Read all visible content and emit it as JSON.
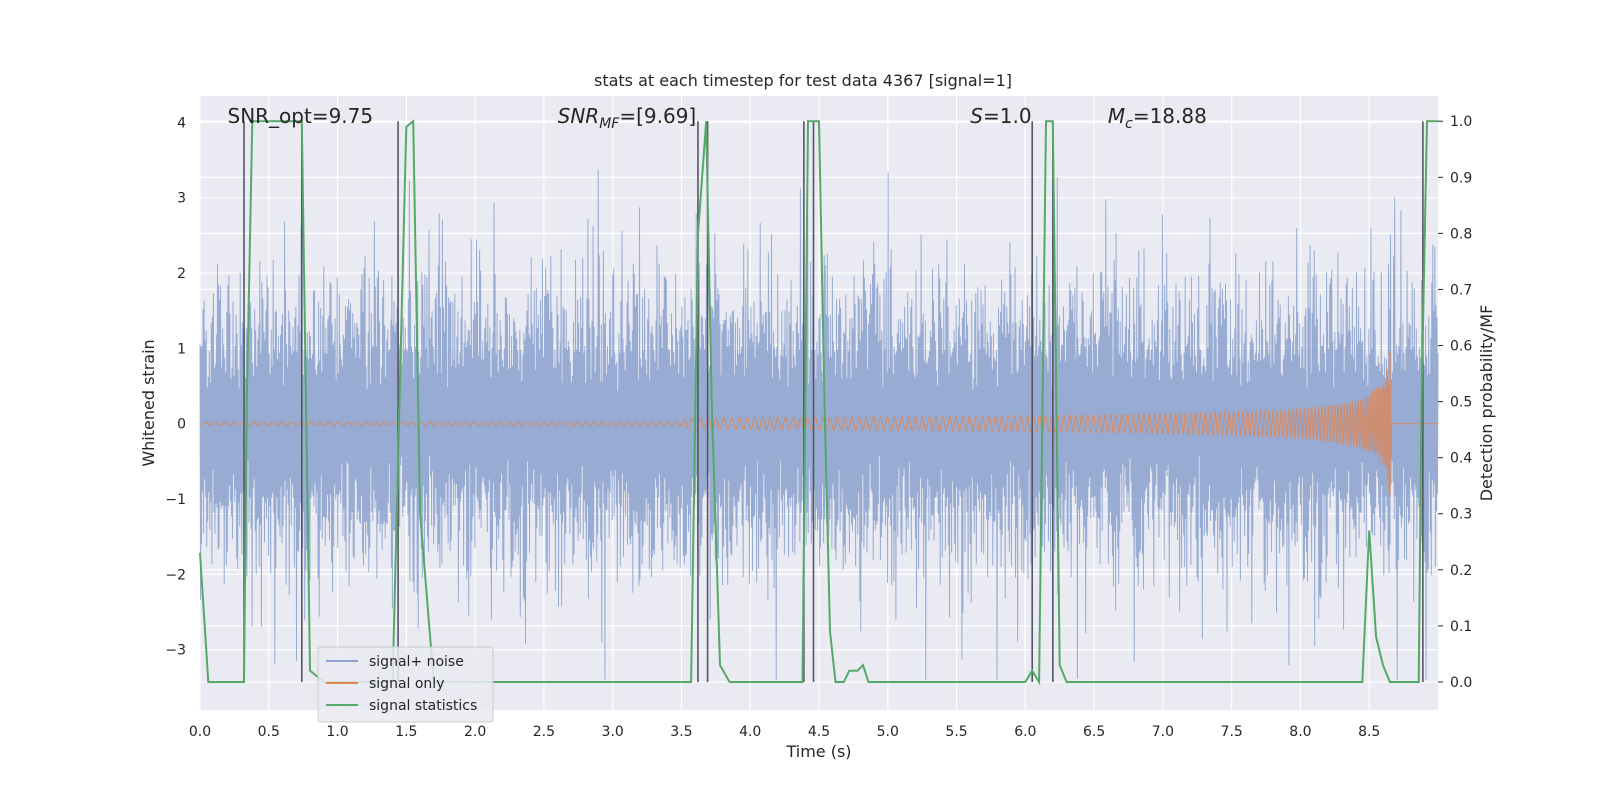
{
  "chart_data": {
    "type": "line",
    "title": "stats at each timestep for test data 4367 [signal=1]",
    "xlabel": "Time (s)",
    "ylabel": "Whitened strain",
    "ylabel_right": "Detection probability/MF",
    "xlim": [
      0.0,
      9.0
    ],
    "ylim": [
      -3.8,
      4.35
    ],
    "ylim_right": [
      -0.05,
      1.045
    ],
    "x_ticks": [
      "0.0",
      "0.5",
      "1.0",
      "1.5",
      "2.0",
      "2.5",
      "3.0",
      "3.5",
      "4.0",
      "4.5",
      "5.0",
      "5.5",
      "6.0",
      "6.5",
      "7.0",
      "7.5",
      "8.0",
      "8.5"
    ],
    "y_ticks": [
      "−3",
      "−2",
      "−1",
      "0",
      "1",
      "2",
      "3",
      "4"
    ],
    "y_ticks_right": [
      "0.0",
      "0.1",
      "0.2",
      "0.3",
      "0.4",
      "0.5",
      "0.6",
      "0.7",
      "0.8",
      "0.9",
      "1.0"
    ],
    "grid": true,
    "legend_position": "lower-left",
    "annotations": [
      {
        "text": "SNR_opt=9.75",
        "x": 0.2
      },
      {
        "text": "SNR_MF=[9.69]",
        "x": 2.6
      },
      {
        "text": "S=1.0",
        "x": 5.6
      },
      {
        "text": "M_c=18.88",
        "x": 6.6
      }
    ],
    "series": [
      {
        "name": "signal+ noise",
        "color": "#8fa5cf",
        "description_range": [
          -3.4,
          4.0
        ],
        "x_range": [
          0.0,
          9.0
        ]
      },
      {
        "name": "signal only",
        "color": "#dd8452",
        "chirp_end": 8.66,
        "chirp_peak_amplitude": [
          1.9,
          -1.55
        ]
      },
      {
        "name": "signal statistics",
        "color": "#55a868",
        "axis": "right",
        "x": [
          0.0,
          0.06,
          0.1,
          0.2,
          0.3,
          0.32,
          0.34,
          0.38,
          0.45,
          0.6,
          0.7,
          0.74,
          0.8,
          0.9,
          1.0,
          1.2,
          1.4,
          1.45,
          1.5,
          1.55,
          1.6,
          1.7,
          1.8,
          2.0,
          3.0,
          3.5,
          3.57,
          3.62,
          3.65,
          3.68,
          3.72,
          3.78,
          3.85,
          3.9,
          4.0,
          4.3,
          4.38,
          4.42,
          4.46,
          4.5,
          4.54,
          4.58,
          4.62,
          4.68,
          4.72,
          4.78,
          4.82,
          4.86,
          4.9,
          5.0,
          5.5,
          6.0,
          6.05,
          6.1,
          6.15,
          6.2,
          6.25,
          6.3,
          6.4,
          7.0,
          8.0,
          8.4,
          8.45,
          8.5,
          8.55,
          8.6,
          8.65,
          8.7,
          8.8,
          8.86,
          8.88,
          8.92,
          8.97,
          9.0
        ],
        "y": [
          0.23,
          0.0,
          0.0,
          0.0,
          0.0,
          0.0,
          0.5,
          1.0,
          1.0,
          1.0,
          1.0,
          1.0,
          0.02,
          0.0,
          0.0,
          0.0,
          0.0,
          0.5,
          0.99,
          1.0,
          0.3,
          0.0,
          0.0,
          0.0,
          0.0,
          0.0,
          0.0,
          0.8,
          0.9,
          1.0,
          0.5,
          0.03,
          0.0,
          0.0,
          0.0,
          0.0,
          0.0,
          1.0,
          1.0,
          1.0,
          0.5,
          0.09,
          0.0,
          0.0,
          0.02,
          0.02,
          0.03,
          0.0,
          0.0,
          0.0,
          0.0,
          0.0,
          0.02,
          0.0,
          1.0,
          1.0,
          0.03,
          0.0,
          0.0,
          0.0,
          0.0,
          0.0,
          0.0,
          0.27,
          0.08,
          0.03,
          0.0,
          0.0,
          0.0,
          0.0,
          0.5,
          1.0,
          1.0,
          1.0
        ]
      }
    ],
    "vertical_markers": [
      0.32,
      0.74,
      1.44,
      3.62,
      3.69,
      4.39,
      4.46,
      6.05,
      6.2,
      8.89
    ]
  }
}
